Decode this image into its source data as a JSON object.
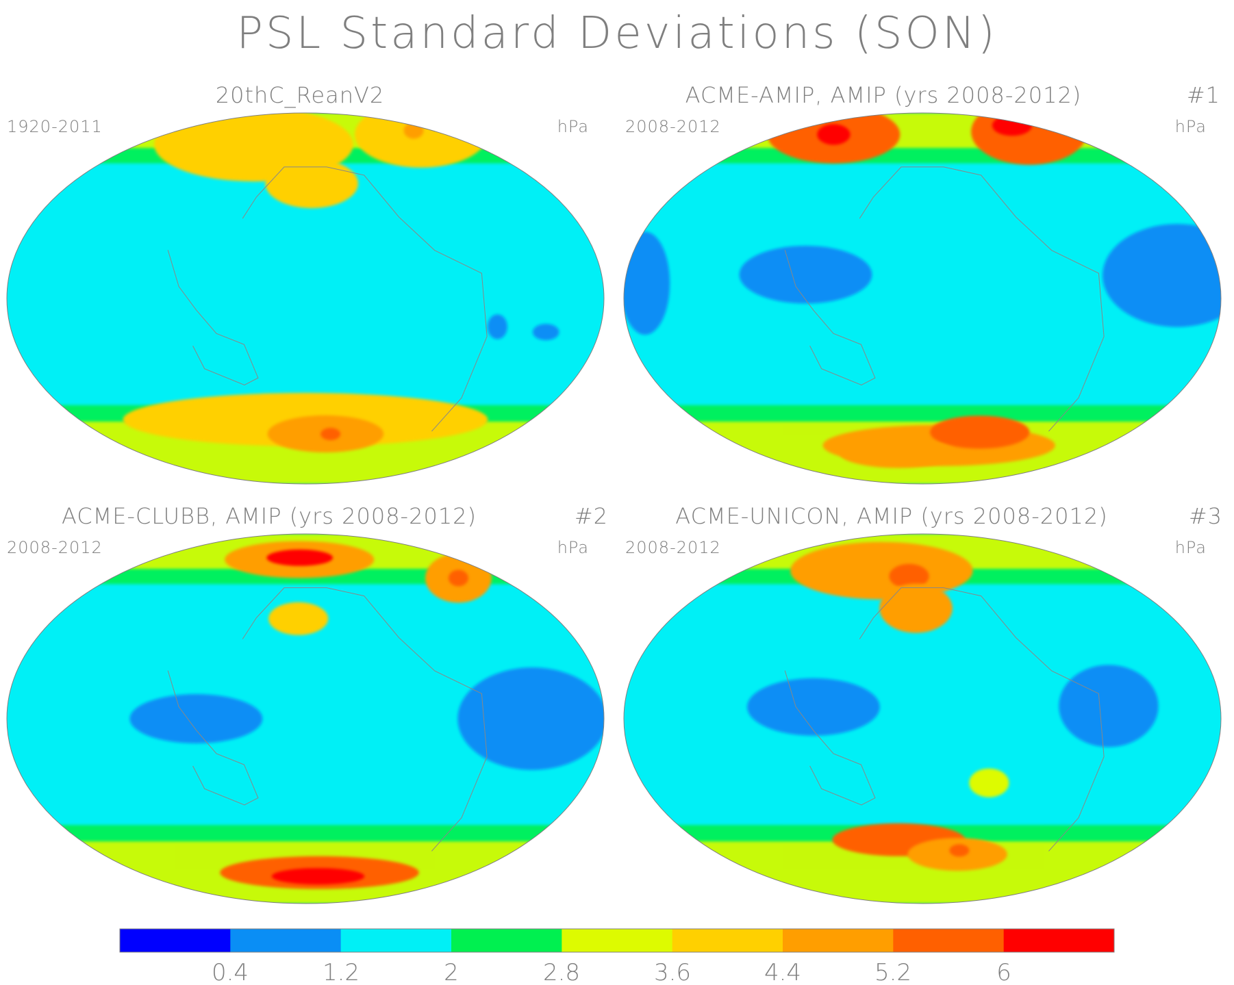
{
  "figure": {
    "title": "PSL Standard Deviations (SON)"
  },
  "panels": [
    {
      "title": "20thC_ReanV2",
      "period": "1920-2011",
      "units": "hPa",
      "number": ""
    },
    {
      "title": "ACME-AMIP, AMIP (yrs 2008-2012)",
      "period": "2008-2012",
      "units": "hPa",
      "number": "#1"
    },
    {
      "title": "ACME-CLUBB, AMIP (yrs 2008-2012)",
      "period": "2008-2012",
      "units": "hPa",
      "number": "#2"
    },
    {
      "title": "ACME-UNICON, AMIP (yrs 2008-2012)",
      "period": "2008-2012",
      "units": "hPa",
      "number": "#3"
    }
  ],
  "colorbar": {
    "colors": [
      "#0000ff",
      "#0a8ef5",
      "#00f0f6",
      "#00f050",
      "#ddfb00",
      "#ffd000",
      "#ff9e00",
      "#ff6000",
      "#ff0000"
    ],
    "labels": [
      "0.4",
      "1.2",
      "2",
      "2.8",
      "3.6",
      "4.4",
      "5.2",
      "6"
    ]
  },
  "chart_data": {
    "type": "heatmap",
    "projection": "Hammer-Aitoff global, Pacific-centered",
    "levels": [
      0.4,
      1.2,
      2,
      2.8,
      3.6,
      4.4,
      5.2,
      6
    ],
    "units": "hPa",
    "panels": [
      {
        "name": "20thC_ReanV2",
        "background": 1.2,
        "features": [
          {
            "lon": 110,
            "lat": 70,
            "rlon": 60,
            "rlat": 18,
            "value": 3.6
          },
          {
            "lon": 185,
            "lat": 52,
            "rlon": 28,
            "rlat": 12,
            "value": 3.6
          },
          {
            "lon": 340,
            "lat": 66,
            "rlon": 40,
            "rlat": 16,
            "value": 3.6
          },
          {
            "lon": 345,
            "lat": 68,
            "rlon": 6,
            "rlat": 4,
            "value": 4.4
          },
          {
            "lon": 180,
            "lat": -55,
            "rlon": 110,
            "rlat": 13,
            "value": 3.6
          },
          {
            "lon": 200,
            "lat": -62,
            "rlon": 35,
            "rlat": 9,
            "value": 4.4
          },
          {
            "lon": 205,
            "lat": -62,
            "rlon": 6,
            "rlat": 3,
            "value": 5.2
          },
          {
            "lon": 290,
            "lat": -11,
            "rlon": 6,
            "rlat": 6,
            "value": 0.4
          },
          {
            "lon": 322,
            "lat": -12,
            "rlon": 8,
            "rlat": 4,
            "value": 0.4
          }
        ]
      },
      {
        "name": "ACME-AMIP, AMIP (yrs 2008-2012)",
        "background": 1.2,
        "features": [
          {
            "lon": 45,
            "lat": 70,
            "rlon": 40,
            "rlat": 14,
            "value": 5.2
          },
          {
            "lon": 45,
            "lat": 70,
            "rlon": 10,
            "rlat": 5,
            "value": 6
          },
          {
            "lon": 340,
            "lat": 68,
            "rlon": 35,
            "rlat": 16,
            "value": 5.2
          },
          {
            "lon": 345,
            "lat": 72,
            "rlon": 12,
            "rlat": 5,
            "value": 6
          },
          {
            "lon": 115,
            "lat": 10,
            "rlon": 40,
            "rlat": 14,
            "value": 0.4
          },
          {
            "lon": 330,
            "lat": 8,
            "rlon": 45,
            "rlat": 25,
            "value": 0.4
          },
          {
            "lon": 15,
            "lat": 5,
            "rlon": 15,
            "rlat": 25,
            "value": 0.4
          },
          {
            "lon": 200,
            "lat": -68,
            "rlon": 70,
            "rlat": 10,
            "value": 4.4
          },
          {
            "lon": 235,
            "lat": -60,
            "rlon": 30,
            "rlat": 8,
            "value": 5.2
          },
          {
            "lon": 145,
            "lat": -72,
            "rlon": 35,
            "rlat": 7,
            "value": 4.4
          }
        ]
      },
      {
        "name": "ACME-CLUBB, AMIP (yrs 2008-2012)",
        "background": 1.2,
        "features": [
          {
            "lon": 170,
            "lat": 75,
            "rlon": 45,
            "rlat": 9,
            "value": 4.4
          },
          {
            "lon": 170,
            "lat": 76,
            "rlon": 20,
            "rlat": 4,
            "value": 6
          },
          {
            "lon": 175,
            "lat": 45,
            "rlon": 18,
            "rlat": 8,
            "value": 3.6
          },
          {
            "lon": 328,
            "lat": 55,
            "rlon": 20,
            "rlat": 12,
            "value": 4.4
          },
          {
            "lon": 328,
            "lat": 55,
            "rlon": 6,
            "rlat": 4,
            "value": 5.2
          },
          {
            "lon": 120,
            "lat": 0,
            "rlon": 40,
            "rlat": 12,
            "value": 0.4
          },
          {
            "lon": 310,
            "lat": 0,
            "rlon": 45,
            "rlat": 25,
            "value": 0.4
          },
          {
            "lon": 200,
            "lat": -72,
            "rlon": 60,
            "rlat": 8,
            "value": 5.2
          },
          {
            "lon": 200,
            "lat": -74,
            "rlon": 28,
            "rlat": 4,
            "value": 6
          }
        ]
      },
      {
        "name": "ACME-UNICON, AMIP (yrs 2008-2012)",
        "background": 1.2,
        "features": [
          {
            "lon": 130,
            "lat": 68,
            "rlon": 55,
            "rlat": 14,
            "value": 4.4
          },
          {
            "lon": 165,
            "lat": 66,
            "rlon": 12,
            "rlat": 6,
            "value": 5.2
          },
          {
            "lon": 175,
            "lat": 50,
            "rlon": 22,
            "rlat": 12,
            "value": 4.4
          },
          {
            "lon": 120,
            "lat": 5,
            "rlon": 40,
            "rlat": 14,
            "value": 0.4
          },
          {
            "lon": 285,
            "lat": 5,
            "rlon": 30,
            "rlat": 20,
            "value": 0.4
          },
          {
            "lon": 220,
            "lat": -28,
            "rlon": 12,
            "rlat": 7,
            "value": 2.8
          },
          {
            "lon": 160,
            "lat": -55,
            "rlon": 40,
            "rlat": 8,
            "value": 5.2
          },
          {
            "lon": 215,
            "lat": -62,
            "rlon": 30,
            "rlat": 8,
            "value": 4.4
          },
          {
            "lon": 215,
            "lat": -60,
            "rlon": 6,
            "rlat": 3,
            "value": 5.2
          }
        ]
      }
    ]
  }
}
